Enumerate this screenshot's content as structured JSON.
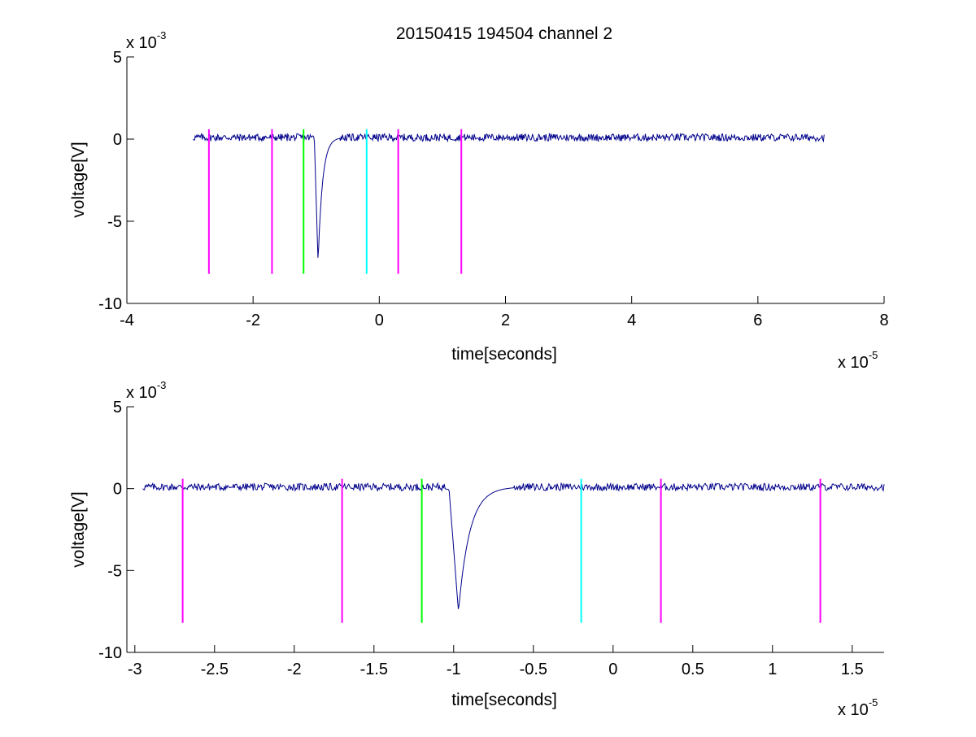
{
  "colors": {
    "signal": "#00008B",
    "magenta_marker": "#FF00FF",
    "green_marker": "#00FF00",
    "cyan_marker": "#00FFFF",
    "axes": "#000000",
    "background": "#FFFFFF"
  },
  "chart_data": [
    {
      "type": "line",
      "title": "20150415 194504 channel 2",
      "xlabel": "time[seconds]",
      "ylabel": "voltage[V]",
      "x_exponent": {
        "base": "x 10",
        "power": "-5"
      },
      "y_exponent": {
        "base": "x 10",
        "power": "-3"
      },
      "xlim": [
        -4,
        8
      ],
      "ylim": [
        -10,
        5
      ],
      "xticks": [
        -4,
        -2,
        0,
        2,
        4,
        6,
        8
      ],
      "xtick_labels": [
        "-4",
        "-2",
        "0",
        "2",
        "4",
        "6",
        "8"
      ],
      "yticks": [
        -10,
        -5,
        0,
        5
      ],
      "ytick_labels": [
        "-10",
        "-5",
        "0",
        "5"
      ],
      "grid": false,
      "signal": {
        "x_start": -2.95,
        "x_end": 7.05,
        "baseline": 0.1,
        "spike": {
          "x": -0.97,
          "min": -7.5
        }
      },
      "markers": [
        {
          "x": -2.7,
          "color": "magenta"
        },
        {
          "x": -1.7,
          "color": "magenta"
        },
        {
          "x": -1.2,
          "color": "green"
        },
        {
          "x": -0.2,
          "color": "cyan"
        },
        {
          "x": 0.3,
          "color": "magenta"
        },
        {
          "x": 1.3,
          "color": "magenta"
        }
      ],
      "marker_range": [
        -8.2,
        0.6
      ]
    },
    {
      "type": "line",
      "title": "",
      "xlabel": "time[seconds]",
      "ylabel": "voltage[V]",
      "x_exponent": {
        "base": "x 10",
        "power": "-5"
      },
      "y_exponent": {
        "base": "x 10",
        "power": "-3"
      },
      "xlim": [
        -3.05,
        1.7
      ],
      "ylim": [
        -10,
        5
      ],
      "xticks": [
        -3,
        -2.5,
        -2,
        -1.5,
        -1,
        -0.5,
        0,
        0.5,
        1,
        1.5
      ],
      "xtick_labels": [
        "-3",
        "-2.5",
        "-2",
        "-1.5",
        "-1",
        "-0.5",
        "0",
        "0.5",
        "1",
        "1.5"
      ],
      "yticks": [
        -10,
        -5,
        0,
        5
      ],
      "ytick_labels": [
        "-10",
        "-5",
        "0",
        "5"
      ],
      "grid": false,
      "signal": {
        "x_start": -2.95,
        "x_end": 1.7,
        "baseline": 0.1,
        "spike": {
          "x": -0.97,
          "min": -7.5
        }
      },
      "markers": [
        {
          "x": -2.7,
          "color": "magenta"
        },
        {
          "x": -1.7,
          "color": "magenta"
        },
        {
          "x": -1.2,
          "color": "green"
        },
        {
          "x": -0.2,
          "color": "cyan"
        },
        {
          "x": 0.3,
          "color": "magenta"
        },
        {
          "x": 1.3,
          "color": "magenta"
        }
      ],
      "marker_range": [
        -8.2,
        0.6
      ]
    }
  ]
}
